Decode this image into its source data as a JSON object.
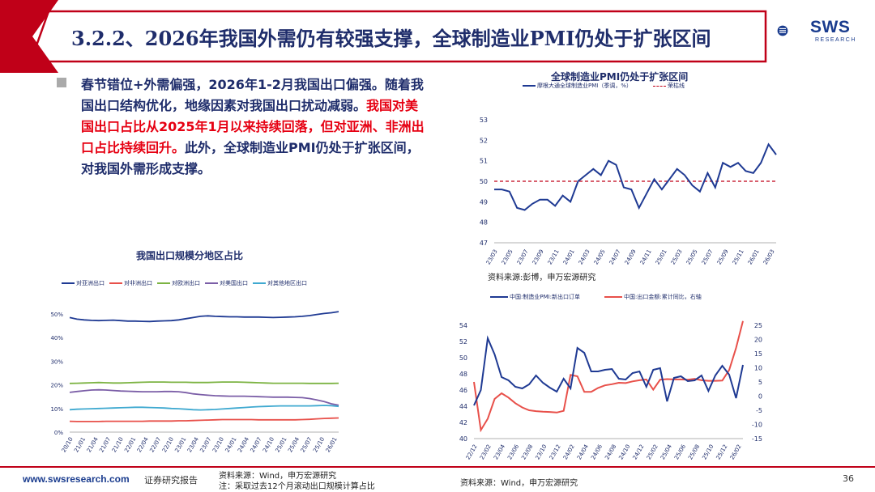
{
  "header": {
    "title": "3.2.2、2026年我国外需仍有较强支撑，全球制造业PMI仍处于扩张区间",
    "logo_text": "SWS",
    "logo_sub": "RESEARCH"
  },
  "body": {
    "part1": "春节错位+外需偏强，2026年1-2月我国出口偏强。随着我国出口结构优化，地缘因素对我国出口扰动减弱。",
    "part2_red": "我国对美国出口占比从2025年1月以来持续回落，但对亚洲、非洲出口占比持续回升。",
    "part3": "此外，全球制造业PMI仍处于扩张区间，对我国外需形成支撑。"
  },
  "footer": {
    "url": "www.swsresearch.com",
    "report_type": "证券研究报告",
    "source_line1": "资料来源：Wind，申万宏源研究",
    "source_line2": "注：采取过去12个月滚动出口规模计算占比",
    "source_right": "资料来源：Wind，申万宏源研究",
    "page": "36"
  },
  "colors": {
    "navy": "#1f2d6b",
    "red": "#e60012",
    "blue_series": "#1f3a93",
    "red_series": "#e8504a",
    "green_series": "#7cb342",
    "purple_series": "#7b5ea7",
    "cyan_series": "#3fa9d0"
  },
  "chart_data": [
    {
      "id": "pmi",
      "type": "line",
      "title": "全球制造业PMI仍处于扩张区间",
      "source": "资料来源:彭博，申万宏源研究",
      "ylim": [
        47,
        53
      ],
      "yticks": [
        47,
        48,
        49,
        50,
        51,
        52,
        53
      ],
      "x_ticks": [
        "23/03",
        "23/05",
        "23/07",
        "23/09",
        "23/11",
        "24/01",
        "24/03",
        "24/05",
        "24/07",
        "24/09",
        "24/11",
        "25/01",
        "25/03",
        "25/05",
        "25/07",
        "25/09",
        "25/11",
        "26/01",
        "26/03"
      ],
      "reference_line": {
        "name": "荣枯线",
        "value": 50
      },
      "series": [
        {
          "name": "摩根大通全球制造业PMI（季调，%）",
          "values": [
            49.6,
            49.6,
            49.5,
            48.7,
            48.6,
            48.9,
            49.1,
            49.1,
            48.8,
            49.3,
            49.0,
            50.0,
            50.3,
            50.6,
            50.3,
            51.0,
            50.8,
            49.7,
            49.6,
            48.7,
            49.4,
            50.1,
            49.6,
            50.1,
            50.6,
            50.3,
            49.8,
            49.5,
            50.4,
            49.7,
            50.9,
            50.7,
            50.9,
            50.5,
            50.4,
            50.9,
            51.8,
            51.3
          ]
        }
      ]
    },
    {
      "id": "region_share",
      "type": "line",
      "title": "我国出口规模分地区占比",
      "ylim": [
        0,
        50
      ],
      "yticks": [
        "0%",
        "10%",
        "20%",
        "30%",
        "40%",
        "50%"
      ],
      "x_ticks": [
        "20/10",
        "21/01",
        "21/04",
        "21/07",
        "21/10",
        "22/01",
        "22/04",
        "22/07",
        "22/10",
        "23/01",
        "23/04",
        "23/07",
        "23/10",
        "24/01",
        "24/04",
        "24/07",
        "24/10",
        "25/01",
        "25/04",
        "25/07",
        "25/10",
        "26/01"
      ],
      "series": [
        {
          "name": "对亚洲出口",
          "values": [
            48.5,
            47.8,
            47.5,
            47.3,
            47.2,
            47.3,
            47.4,
            47.2,
            47.0,
            47.0,
            46.9,
            46.8,
            47.0,
            47.1,
            47.2,
            47.5,
            48.0,
            48.5,
            49.0,
            49.2,
            49.0,
            48.9,
            48.8,
            48.8,
            48.7,
            48.7,
            48.7,
            48.6,
            48.5,
            48.6,
            48.7,
            48.8,
            49.0,
            49.3,
            49.8,
            50.2,
            50.5,
            51.0
          ]
        },
        {
          "name": "对非洲出口",
          "values": [
            4.6,
            4.5,
            4.5,
            4.5,
            4.5,
            4.6,
            4.6,
            4.6,
            4.6,
            4.6,
            4.6,
            4.7,
            4.7,
            4.7,
            4.7,
            4.8,
            4.8,
            4.9,
            5.0,
            5.1,
            5.2,
            5.3,
            5.3,
            5.3,
            5.3,
            5.3,
            5.2,
            5.2,
            5.2,
            5.2,
            5.2,
            5.2,
            5.3,
            5.4,
            5.6,
            5.8,
            5.9,
            6.0
          ]
        },
        {
          "name": "对欧洲出口",
          "values": [
            20.6,
            20.7,
            20.8,
            20.9,
            21.0,
            20.9,
            20.8,
            20.8,
            20.9,
            21.0,
            21.1,
            21.2,
            21.2,
            21.2,
            21.1,
            21.1,
            21.1,
            21.0,
            21.0,
            21.0,
            21.1,
            21.2,
            21.2,
            21.2,
            21.1,
            21.0,
            20.9,
            20.8,
            20.7,
            20.7,
            20.7,
            20.7,
            20.7,
            20.6,
            20.6,
            20.6,
            20.6,
            20.7
          ]
        },
        {
          "name": "对美国出口",
          "values": [
            16.8,
            17.2,
            17.5,
            17.8,
            17.9,
            17.8,
            17.6,
            17.4,
            17.3,
            17.2,
            17.1,
            17.1,
            17.1,
            17.2,
            17.2,
            17.1,
            16.7,
            16.2,
            15.9,
            15.6,
            15.4,
            15.3,
            15.2,
            15.2,
            15.2,
            15.1,
            15.0,
            14.9,
            14.8,
            14.8,
            14.8,
            14.7,
            14.6,
            14.2,
            13.6,
            12.9,
            12.0,
            11.4
          ]
        },
        {
          "name": "对其他地区出口",
          "values": [
            9.5,
            9.7,
            9.8,
            9.9,
            10.0,
            10.1,
            10.2,
            10.3,
            10.4,
            10.5,
            10.5,
            10.4,
            10.3,
            10.2,
            10.0,
            9.9,
            9.7,
            9.5,
            9.4,
            9.5,
            9.6,
            9.8,
            10.0,
            10.2,
            10.4,
            10.6,
            10.8,
            10.9,
            11.0,
            11.1,
            11.1,
            11.1,
            11.1,
            11.1,
            11.2,
            11.3,
            11.2,
            10.9
          ]
        }
      ]
    },
    {
      "id": "new_orders_export",
      "type": "line",
      "title": "",
      "ylim_left": [
        40,
        54
      ],
      "yticks_left": [
        40,
        42,
        44,
        46,
        48,
        50,
        52,
        54
      ],
      "ylim_right": [
        -15,
        25
      ],
      "yticks_right": [
        -15,
        -10,
        -5,
        0,
        5,
        10,
        15,
        20,
        25
      ],
      "x_ticks": [
        "22/12",
        "23/02",
        "23/04",
        "23/06",
        "23/08",
        "23/10",
        "23/12",
        "24/02",
        "24/04",
        "24/06",
        "24/08",
        "24/10",
        "24/12",
        "25/02",
        "25/04",
        "25/06",
        "25/08",
        "25/10",
        "25/12",
        "26/02"
      ],
      "series": [
        {
          "name": "中国:制造业PMI:新出口订单",
          "axis": "left",
          "values": [
            44.1,
            46.0,
            52.4,
            50.4,
            47.6,
            47.2,
            46.4,
            46.2,
            46.7,
            47.8,
            46.9,
            46.3,
            45.8,
            47.4,
            46.2,
            51.2,
            50.6,
            48.3,
            48.3,
            48.5,
            48.6,
            47.4,
            47.3,
            48.1,
            48.3,
            46.4,
            48.5,
            48.7,
            44.6,
            47.5,
            47.7,
            47.1,
            47.2,
            47.8,
            45.9,
            47.8,
            49.0,
            47.9,
            45.0,
            49.1
          ]
        },
        {
          "name": "中国:出口金额:累计同比，右轴",
          "axis": "right",
          "values": [
            5.0,
            -12.0,
            -8.0,
            -1.0,
            1.0,
            -0.5,
            -2.5,
            -4.0,
            -5.0,
            -5.3,
            -5.5,
            -5.6,
            -5.8,
            -5.2,
            7.5,
            7.0,
            1.5,
            1.5,
            2.9,
            3.8,
            4.2,
            4.7,
            4.6,
            5.2,
            5.6,
            5.9,
            2.3,
            5.8,
            6.0,
            5.9,
            5.9,
            5.8,
            6.1,
            5.6,
            5.4,
            5.4,
            5.5,
            9.2,
            17.0,
            28.0
          ]
        }
      ]
    }
  ]
}
